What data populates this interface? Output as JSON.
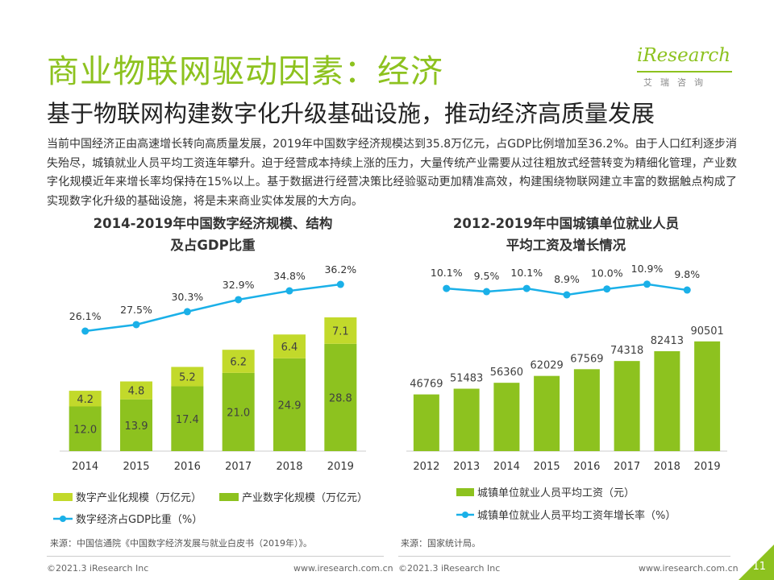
{
  "header": {
    "title": "商业物联网驱动因素：经济",
    "subtitle": "基于物联网构建数字化升级基础设施，推动经济高质量发展",
    "logo_text": "iResearch",
    "logo_cn": "艾瑞咨询"
  },
  "intro": "当前中国经济正由高速增长转向高质量发展，2019年中国数字经济规模达到35.8万亿元，占GDP比例增加至36.2%。由于人口红利逐步消失殆尽，城镇就业人员平均工资连年攀升。迫于经营成本持续上涨的压力，大量传统产业需要从过往粗放式经营转变为精细化管理，产业数字化规模近年来增长率均保持在15%以上。基于数据进行经营决策比经验驱动更加精准高效，构建围绕物联网建立丰富的数据触点构成了实现数字化升级的基础设施，将是未来商业实体发展的大方向。",
  "colors": {
    "brand": "#8dc21f",
    "bar_light": "#c2d92b",
    "bar_dark": "#8dc21f",
    "line": "#1ab0e8"
  },
  "chart_data": [
    {
      "type": "bar",
      "stacked": true,
      "title_lines": [
        "2014-2019年中国数字经济规模、结构",
        "及占GDP比重"
      ],
      "categories": [
        "2014",
        "2015",
        "2016",
        "2017",
        "2018",
        "2019"
      ],
      "series": [
        {
          "name": "产业数字化规模（万亿元）",
          "values": [
            12.0,
            13.9,
            17.4,
            21.0,
            24.9,
            28.8
          ],
          "labels": [
            "12.0",
            "13.9",
            "17.4",
            "21.0",
            "24.9",
            "28.8"
          ]
        },
        {
          "name": "数字产业化规模（万亿元）",
          "values": [
            4.2,
            4.8,
            5.2,
            6.2,
            6.4,
            7.1
          ],
          "labels": [
            "4.2",
            "4.8",
            "5.2",
            "6.2",
            "6.4",
            "7.1"
          ]
        }
      ],
      "line_series": {
        "name": "数字经济占GDP比重（%）",
        "values": [
          26.1,
          27.5,
          30.3,
          32.9,
          34.8,
          36.2
        ],
        "labels": [
          "26.1%",
          "27.5%",
          "30.3%",
          "32.9%",
          "34.8%",
          "36.2%"
        ]
      },
      "legend": [
        "数字产业化规模（万亿元）",
        "产业数字化规模（万亿元）",
        "数字经济占GDP比重（%）"
      ],
      "legend_position": "bottom",
      "grid": false
    },
    {
      "type": "bar",
      "title_lines": [
        "2012-2019年中国城镇单位就业人员",
        "平均工资及增长情况"
      ],
      "categories": [
        "2012",
        "2013",
        "2014",
        "2015",
        "2016",
        "2017",
        "2018",
        "2019"
      ],
      "series": [
        {
          "name": "城镇单位就业人员平均工资（元）",
          "values": [
            46769,
            51483,
            56360,
            62029,
            67569,
            74318,
            82413,
            90501
          ],
          "labels": [
            "46769",
            "51483",
            "56360",
            "62029",
            "67569",
            "74318",
            "82413",
            "90501"
          ]
        }
      ],
      "line_series": {
        "name": "城镇单位就业人员平均工资年增长率（%）",
        "values": [
          10.1,
          9.5,
          10.1,
          8.9,
          10.0,
          10.9,
          9.8
        ],
        "x": [
          "2013",
          "2014",
          "2015",
          "2016",
          "2017",
          "2018",
          "2019"
        ],
        "labels": [
          "10.1%",
          "9.5%",
          "10.1%",
          "8.9%",
          "10.0%",
          "10.9%",
          "9.8%"
        ]
      },
      "legend": [
        "城镇单位就业人员平均工资（元）",
        "城镇单位就业人员平均工资年增长率（%）"
      ],
      "legend_position": "bottom",
      "grid": false
    }
  ],
  "sources": {
    "left": "来源：中国信通院《中国数字经济发展与就业白皮书（2019年）》。",
    "right": "来源：国家统计局。"
  },
  "footer": {
    "copyright": "©2021.3 iResearch Inc",
    "url": "www.iresearch.com.cn",
    "page": "11"
  }
}
